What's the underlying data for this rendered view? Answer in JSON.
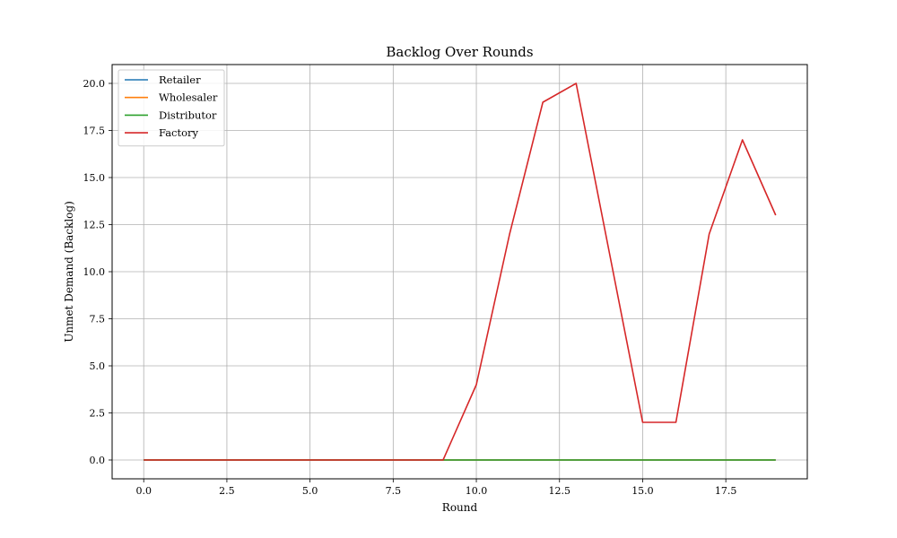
{
  "chart_data": {
    "type": "line",
    "title": "Backlog Over Rounds",
    "xlabel": "Round",
    "ylabel": "Unmet Demand (Backlog)",
    "xlim": [
      -0.95,
      19.95
    ],
    "ylim": [
      -1.0,
      21.0
    ],
    "xticks": [
      0.0,
      2.5,
      5.0,
      7.5,
      10.0,
      12.5,
      15.0,
      17.5
    ],
    "xtick_labels": [
      "0.0",
      "2.5",
      "5.0",
      "7.5",
      "10.0",
      "12.5",
      "15.0",
      "17.5"
    ],
    "yticks": [
      0.0,
      2.5,
      5.0,
      7.5,
      10.0,
      12.5,
      15.0,
      17.5,
      20.0
    ],
    "ytick_labels": [
      "0.0",
      "2.5",
      "5.0",
      "7.5",
      "10.0",
      "12.5",
      "15.0",
      "17.5",
      "20.0"
    ],
    "grid": true,
    "legend_position": "top-left",
    "x": [
      0,
      1,
      2,
      3,
      4,
      5,
      6,
      7,
      8,
      9,
      10,
      11,
      12,
      13,
      14,
      15,
      16,
      17,
      18,
      19
    ],
    "series": [
      {
        "name": "Retailer",
        "color": "#1f77b4",
        "values": [
          0,
          0,
          0,
          0,
          0,
          0,
          0,
          0,
          0,
          0,
          0,
          0,
          0,
          0,
          0,
          0,
          0,
          0,
          0,
          0
        ]
      },
      {
        "name": "Wholesaler",
        "color": "#ff7f0e",
        "values": [
          0,
          0,
          0,
          0,
          0,
          0,
          0,
          0,
          0,
          0,
          0,
          0,
          0,
          0,
          0,
          0,
          0,
          0,
          0,
          0
        ]
      },
      {
        "name": "Distributor",
        "color": "#2ca02c",
        "values": [
          0,
          0,
          0,
          0,
          0,
          0,
          0,
          0,
          0,
          0,
          0,
          0,
          0,
          0,
          0,
          0,
          0,
          0,
          0,
          0
        ]
      },
      {
        "name": "Factory",
        "color": "#d62728",
        "values": [
          0,
          0,
          0,
          0,
          0,
          0,
          0,
          0,
          0,
          0,
          4,
          12,
          19,
          20,
          11,
          2,
          2,
          12,
          17,
          13
        ]
      }
    ]
  }
}
